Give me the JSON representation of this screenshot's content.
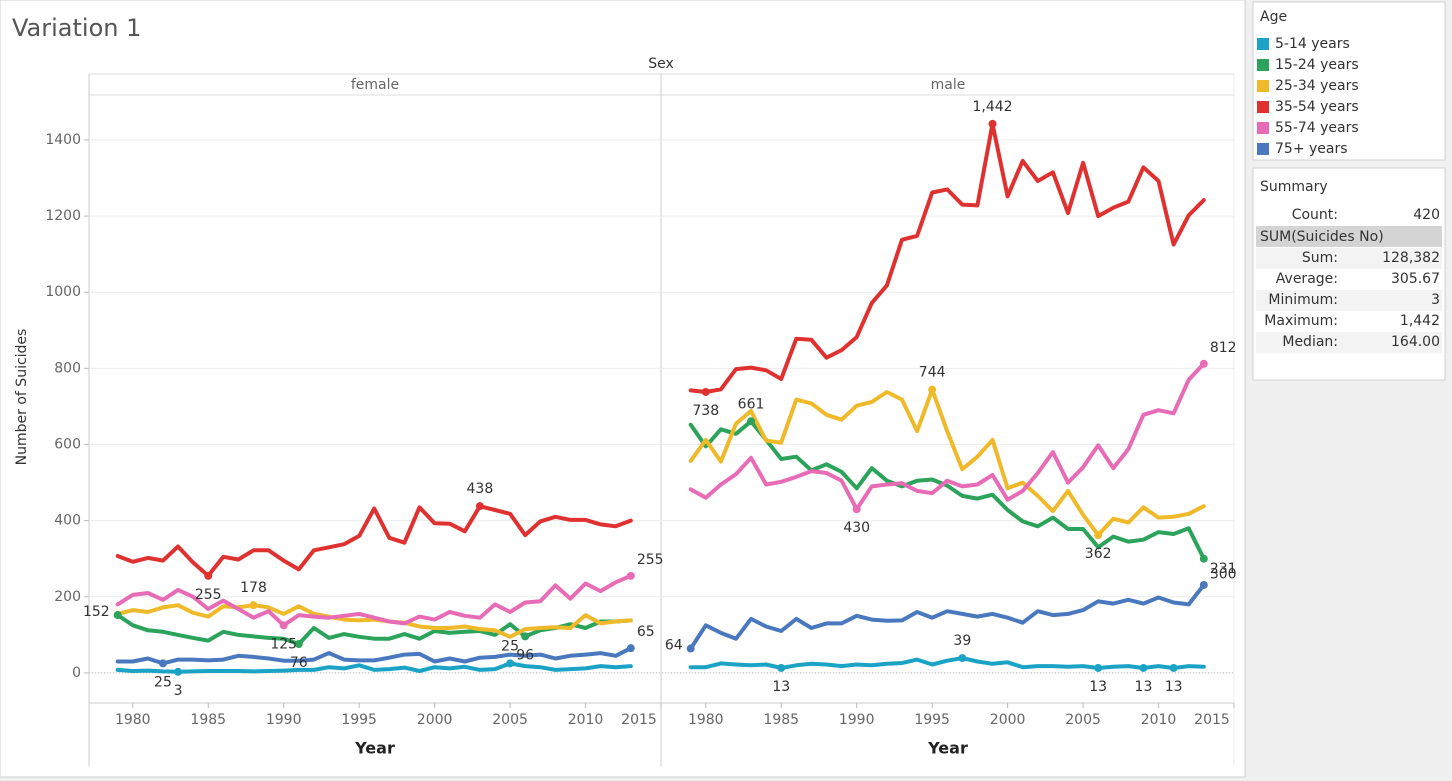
{
  "title": "Variation 1",
  "column_header": "Sex",
  "legend": {
    "title": "Age"
  },
  "summary": {
    "title": "Summary",
    "count": [
      "Count:",
      "420"
    ],
    "field": "SUM(Suicides No)",
    "rows": [
      [
        "Sum:",
        "128,382"
      ],
      [
        "Average:",
        "305.67"
      ],
      [
        "Minimum:",
        "3"
      ],
      [
        "Maximum:",
        "1,442"
      ],
      [
        "Median:",
        "164.00"
      ]
    ]
  },
  "chart_data": [
    {
      "type": "line",
      "title": "female",
      "x_label": "Year",
      "y_label": "Number of Suicides",
      "x": [
        1979,
        1980,
        1981,
        1982,
        1983,
        1984,
        1985,
        1986,
        1987,
        1988,
        1989,
        1990,
        1991,
        1992,
        1993,
        1994,
        1995,
        1996,
        1997,
        1998,
        1999,
        2000,
        2001,
        2002,
        2003,
        2004,
        2005,
        2006,
        2007,
        2008,
        2009,
        2010,
        2011,
        2012,
        2013
      ],
      "xlim": [
        1977.1,
        2015
      ],
      "xticks": [
        1980,
        1985,
        1990,
        1995,
        2000,
        2005,
        2010,
        2015
      ],
      "ylim": [
        -79,
        1518
      ],
      "yticks": [
        0,
        200,
        400,
        600,
        800,
        1000,
        1200,
        1400
      ],
      "grid": true,
      "series": [
        {
          "name": "5-14 years",
          "color": "#1ba3c6",
          "values": [
            8,
            5,
            6,
            4,
            3,
            4,
            5,
            5,
            5,
            4,
            5,
            6,
            8,
            8,
            15,
            12,
            20,
            8,
            10,
            14,
            5,
            15,
            12,
            16,
            8,
            10,
            25,
            18,
            15,
            8,
            10,
            12,
            18,
            15,
            18
          ],
          "value_labels": [
            null,
            null,
            null,
            null,
            "3",
            null,
            null,
            null,
            null,
            null,
            null,
            null,
            null,
            null,
            null,
            null,
            null,
            null,
            null,
            null,
            null,
            null,
            null,
            null,
            null,
            null,
            "25",
            null,
            null,
            null,
            null,
            null,
            null,
            null,
            null
          ]
        },
        {
          "name": "15-24 years",
          "color": "#2ba35a",
          "values": [
            152,
            125,
            112,
            108,
            100,
            92,
            85,
            108,
            100,
            96,
            92,
            90,
            76,
            118,
            92,
            102,
            95,
            90,
            90,
            102,
            90,
            110,
            105,
            108,
            110,
            100,
            128,
            96,
            112,
            118,
            128,
            118,
            135,
            135,
            138
          ],
          "value_labels": [
            "152",
            null,
            null,
            null,
            null,
            null,
            null,
            null,
            null,
            null,
            null,
            null,
            "76",
            null,
            null,
            null,
            null,
            null,
            null,
            null,
            null,
            null,
            null,
            null,
            null,
            null,
            null,
            "96",
            null,
            null,
            null,
            null,
            null,
            null,
            null
          ]
        },
        {
          "name": "25-34 years",
          "color": "#f0b929",
          "values": [
            155,
            165,
            160,
            172,
            178,
            158,
            148,
            175,
            172,
            178,
            172,
            155,
            175,
            155,
            148,
            140,
            138,
            140,
            135,
            132,
            122,
            118,
            118,
            122,
            115,
            112,
            95,
            115,
            118,
            120,
            118,
            152,
            130,
            135,
            138
          ],
          "value_labels": [
            null,
            null,
            null,
            null,
            null,
            null,
            null,
            null,
            null,
            "178",
            null,
            null,
            null,
            null,
            null,
            null,
            null,
            null,
            null,
            null,
            null,
            null,
            null,
            null,
            null,
            null,
            null,
            null,
            null,
            null,
            null,
            null,
            null,
            null,
            null
          ]
        },
        {
          "name": "35-54 years",
          "color": "#e03131",
          "values": [
            307,
            292,
            302,
            295,
            332,
            290,
            255,
            305,
            298,
            322,
            322,
            295,
            272,
            322,
            330,
            338,
            360,
            432,
            355,
            342,
            435,
            393,
            392,
            372,
            438,
            428,
            418,
            362,
            398,
            410,
            402,
            402,
            390,
            385,
            400
          ],
          "value_labels": [
            null,
            null,
            null,
            null,
            null,
            null,
            "255",
            null,
            null,
            null,
            null,
            null,
            null,
            null,
            null,
            null,
            null,
            null,
            null,
            null,
            null,
            null,
            null,
            null,
            "438",
            null,
            null,
            null,
            null,
            null,
            null,
            null,
            null,
            null,
            null
          ]
        },
        {
          "name": "55-74 years",
          "color": "#e86bb5",
          "values": [
            180,
            205,
            210,
            192,
            218,
            200,
            168,
            190,
            168,
            145,
            162,
            125,
            152,
            148,
            145,
            150,
            155,
            145,
            135,
            130,
            148,
            140,
            160,
            150,
            145,
            180,
            160,
            185,
            188,
            230,
            195,
            235,
            215,
            238,
            255
          ],
          "value_labels": [
            null,
            null,
            null,
            null,
            null,
            null,
            null,
            null,
            null,
            null,
            null,
            "125",
            null,
            null,
            null,
            null,
            null,
            null,
            null,
            null,
            null,
            null,
            null,
            null,
            null,
            null,
            null,
            null,
            null,
            null,
            null,
            null,
            null,
            null,
            "255"
          ]
        },
        {
          "name": "75+ years",
          "color": "#4a78be",
          "values": [
            30,
            30,
            38,
            25,
            35,
            35,
            33,
            35,
            45,
            42,
            38,
            32,
            32,
            35,
            52,
            35,
            33,
            33,
            40,
            48,
            50,
            30,
            38,
            30,
            40,
            42,
            48,
            45,
            48,
            38,
            45,
            48,
            52,
            45,
            65
          ],
          "value_labels": [
            null,
            null,
            null,
            "25",
            null,
            null,
            null,
            null,
            null,
            null,
            null,
            null,
            null,
            null,
            null,
            null,
            null,
            null,
            null,
            null,
            null,
            null,
            null,
            null,
            null,
            null,
            null,
            null,
            null,
            null,
            null,
            null,
            null,
            null,
            "65"
          ]
        }
      ]
    },
    {
      "type": "line",
      "title": "male",
      "x_label": "Year",
      "x": [
        1979,
        1980,
        1981,
        1982,
        1983,
        1984,
        1985,
        1986,
        1987,
        1988,
        1989,
        1990,
        1991,
        1992,
        1993,
        1994,
        1995,
        1996,
        1997,
        1998,
        1999,
        2000,
        2001,
        2002,
        2003,
        2004,
        2005,
        2006,
        2007,
        2008,
        2009,
        2010,
        2011,
        2012,
        2013
      ],
      "xlim": [
        1977.1,
        2015
      ],
      "xticks": [
        1980,
        1985,
        1990,
        1995,
        2000,
        2005,
        2010,
        2015
      ],
      "ylim": [
        -79,
        1518
      ],
      "yticks": [
        0,
        200,
        400,
        600,
        800,
        1000,
        1200,
        1400
      ],
      "grid": true,
      "series": [
        {
          "name": "5-14 years",
          "color": "#1ba3c6",
          "values": [
            15,
            15,
            25,
            22,
            20,
            22,
            13,
            20,
            24,
            22,
            18,
            22,
            20,
            24,
            26,
            35,
            22,
            32,
            39,
            30,
            24,
            28,
            15,
            18,
            18,
            16,
            18,
            13,
            16,
            18,
            13,
            18,
            13,
            18,
            16
          ],
          "value_labels": [
            null,
            null,
            null,
            null,
            null,
            null,
            "13",
            null,
            null,
            null,
            null,
            null,
            null,
            null,
            null,
            null,
            null,
            null,
            "39",
            null,
            null,
            null,
            null,
            null,
            null,
            null,
            null,
            "13",
            null,
            null,
            "13",
            null,
            "13",
            null,
            null
          ]
        },
        {
          "name": "15-24 years",
          "color": "#2ba35a",
          "values": [
            652,
            595,
            640,
            628,
            661,
            612,
            562,
            568,
            532,
            548,
            528,
            485,
            538,
            505,
            490,
            505,
            508,
            492,
            465,
            458,
            468,
            428,
            398,
            385,
            408,
            378,
            378,
            330,
            358,
            345,
            350,
            370,
            365,
            380,
            300
          ],
          "value_labels": [
            null,
            null,
            null,
            null,
            "661",
            null,
            null,
            null,
            null,
            null,
            null,
            null,
            null,
            null,
            null,
            null,
            null,
            null,
            null,
            null,
            null,
            null,
            null,
            null,
            null,
            null,
            null,
            null,
            null,
            null,
            null,
            null,
            null,
            null,
            "300"
          ]
        },
        {
          "name": "25-34 years",
          "color": "#f0b929",
          "values": [
            557,
            612,
            555,
            655,
            688,
            610,
            605,
            718,
            708,
            678,
            665,
            702,
            712,
            738,
            718,
            635,
            744,
            635,
            535,
            568,
            612,
            485,
            500,
            465,
            425,
            478,
            415,
            362,
            405,
            395,
            435,
            408,
            410,
            418,
            438
          ],
          "value_labels": [
            null,
            null,
            null,
            null,
            null,
            null,
            null,
            null,
            null,
            null,
            null,
            null,
            null,
            null,
            null,
            null,
            "744",
            null,
            null,
            null,
            null,
            null,
            null,
            null,
            null,
            null,
            null,
            "362",
            null,
            null,
            null,
            null,
            null,
            null,
            null
          ]
        },
        {
          "name": "35-54 years",
          "color": "#e03131",
          "values": [
            742,
            738,
            745,
            798,
            802,
            795,
            772,
            878,
            875,
            828,
            848,
            882,
            972,
            1018,
            1138,
            1148,
            1262,
            1270,
            1230,
            1228,
            1442,
            1252,
            1345,
            1292,
            1315,
            1208,
            1340,
            1200,
            1222,
            1238,
            1328,
            1292,
            1125,
            1202,
            1242
          ],
          "value_labels": [
            null,
            "738",
            null,
            null,
            null,
            null,
            null,
            null,
            null,
            null,
            null,
            null,
            null,
            null,
            null,
            null,
            null,
            null,
            null,
            null,
            "1,442",
            null,
            null,
            null,
            null,
            null,
            null,
            null,
            null,
            null,
            null,
            null,
            null,
            null,
            null
          ]
        },
        {
          "name": "55-74 years",
          "color": "#e86bb5",
          "values": [
            482,
            460,
            495,
            522,
            565,
            495,
            502,
            515,
            530,
            525,
            505,
            430,
            490,
            495,
            498,
            478,
            472,
            505,
            490,
            495,
            520,
            455,
            478,
            525,
            580,
            500,
            540,
            598,
            538,
            588,
            678,
            690,
            682,
            770,
            812
          ],
          "value_labels": [
            null,
            null,
            null,
            null,
            null,
            null,
            null,
            null,
            null,
            null,
            null,
            "430",
            null,
            null,
            null,
            null,
            null,
            null,
            null,
            null,
            null,
            null,
            null,
            null,
            null,
            null,
            null,
            null,
            null,
            null,
            null,
            null,
            null,
            null,
            "812"
          ]
        },
        {
          "name": "75+ years",
          "color": "#4a78be",
          "values": [
            64,
            125,
            105,
            90,
            142,
            122,
            110,
            142,
            118,
            130,
            130,
            150,
            140,
            137,
            138,
            160,
            145,
            162,
            155,
            148,
            155,
            145,
            132,
            162,
            152,
            155,
            165,
            188,
            182,
            192,
            182,
            198,
            185,
            180,
            231
          ],
          "value_labels": [
            "64",
            null,
            null,
            null,
            null,
            null,
            null,
            null,
            null,
            null,
            null,
            null,
            null,
            null,
            null,
            null,
            null,
            null,
            null,
            null,
            null,
            null,
            null,
            null,
            null,
            null,
            null,
            null,
            null,
            null,
            null,
            null,
            null,
            null,
            "231"
          ]
        }
      ]
    }
  ]
}
